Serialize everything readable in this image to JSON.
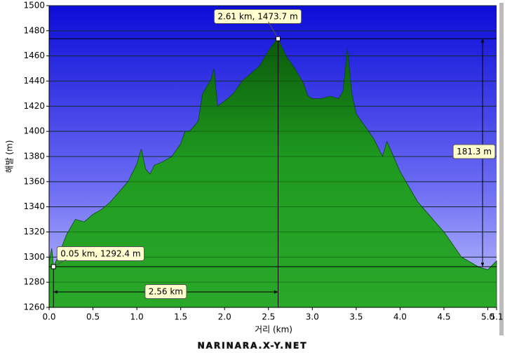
{
  "chart_data": {
    "type": "area",
    "x_label": "거리 (km)",
    "y_label": "해발 (m)",
    "x": [
      0.0,
      0.03,
      0.05,
      0.1,
      0.2,
      0.3,
      0.4,
      0.5,
      0.6,
      0.7,
      0.8,
      0.9,
      1.0,
      1.05,
      1.1,
      1.15,
      1.2,
      1.3,
      1.4,
      1.5,
      1.55,
      1.6,
      1.7,
      1.75,
      1.85,
      1.88,
      1.92,
      2.0,
      2.1,
      2.2,
      2.3,
      2.4,
      2.5,
      2.58,
      2.61,
      2.7,
      2.8,
      2.9,
      2.95,
      3.0,
      3.1,
      3.2,
      3.3,
      3.35,
      3.4,
      3.45,
      3.5,
      3.6,
      3.7,
      3.8,
      3.85,
      3.9,
      4.0,
      4.1,
      4.2,
      4.3,
      4.4,
      4.5,
      4.6,
      4.7,
      4.8,
      4.9,
      5.0,
      5.1
    ],
    "values": [
      1296,
      1307,
      1292.4,
      1300,
      1318,
      1330,
      1328,
      1334,
      1338,
      1344,
      1352,
      1360,
      1374,
      1386,
      1370,
      1366,
      1373,
      1376,
      1380,
      1390,
      1400,
      1400,
      1408,
      1430,
      1442,
      1450,
      1420,
      1424,
      1430,
      1440,
      1446,
      1452,
      1464,
      1472,
      1473.7,
      1460,
      1450,
      1438,
      1428,
      1426,
      1426,
      1428,
      1426,
      1432,
      1466,
      1430,
      1414,
      1404,
      1394,
      1380,
      1392,
      1384,
      1368,
      1356,
      1344,
      1336,
      1328,
      1320,
      1310,
      1300,
      1296,
      1292,
      1290,
      1297
    ],
    "color": "#1f9a1f",
    "xlim": [
      0,
      5.1
    ],
    "ylim": [
      1260,
      1500
    ],
    "xticks": [
      {
        "value": 0,
        "label": "0.0"
      },
      0.5,
      {
        "value": 1,
        "label": "1.0"
      },
      1.5,
      {
        "value": 2,
        "label": "2.0"
      },
      2.5,
      {
        "value": 3,
        "label": "3.0"
      },
      3.5,
      {
        "value": 4,
        "label": "4.0"
      },
      4.5,
      {
        "value": 5,
        "label": "5.0"
      },
      5.1
    ],
    "yticks": [
      1260,
      1280,
      1300,
      1320,
      1340,
      1360,
      1380,
      1400,
      1420,
      1440,
      1460,
      1480,
      1500
    ],
    "grid": true,
    "markers": [
      {
        "x": 0.05,
        "y": 1292.4,
        "label": "0.05 km, 1292.4 m"
      },
      {
        "x": 2.61,
        "y": 1473.7,
        "label": "2.61 km, 1473.7 m"
      }
    ],
    "rise_label": "181.3 m",
    "distance_label": "2.56 km",
    "watermark": "NARINARA.X-Y.NET"
  }
}
